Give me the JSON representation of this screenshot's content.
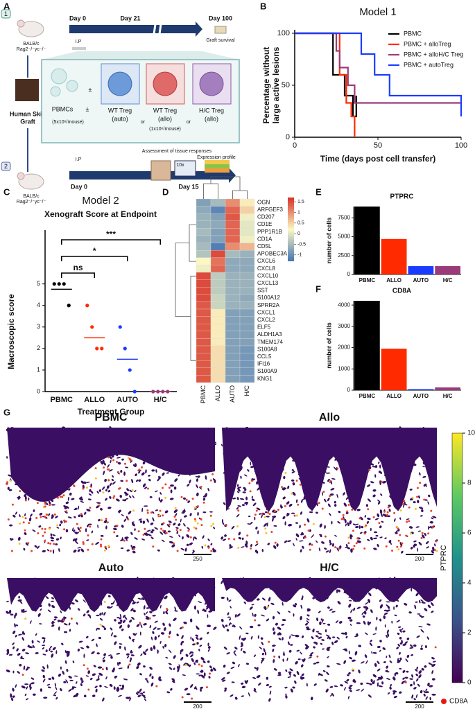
{
  "panel_labels": [
    "A",
    "B",
    "C",
    "D",
    "E",
    "F",
    "G"
  ],
  "schematic": {
    "route_numbers": [
      "1",
      "2"
    ],
    "mouse_label": [
      "BALB/c",
      "Rag2⁻/⁻γc⁻/⁻"
    ],
    "timeline1_days": [
      "Day 0",
      "Day 21",
      "Day 100"
    ],
    "ip": "I.P",
    "graft_survival": "Graft survival",
    "pbmcs": "PBMCs",
    "plus_minus": "±",
    "pbmc_dose": "(5x10⁶/mouse)",
    "tregs": [
      [
        "WT Treg",
        "(auto)"
      ],
      [
        "WT Treg",
        "(allo)"
      ],
      [
        "H/C Treg",
        "(allo)"
      ]
    ],
    "or": "or",
    "treg_dose": "(1x10⁶/mouse)",
    "graft": [
      "Human Skin",
      "Graft"
    ],
    "assessment": "Assessment of tissue responses",
    "timeline2_days": [
      "Day 0",
      "Day 15"
    ],
    "magnification": "10x",
    "expression_profile": "Expression profile"
  },
  "chart_data": [
    {
      "type": "step",
      "title": "Model 1",
      "x_label": "Time (days post cell transfer)",
      "y_label": [
        "Percentage without",
        "large active lesions"
      ],
      "xlim": [
        0,
        100
      ],
      "ylim": [
        0,
        100
      ],
      "xticks": [
        0,
        50,
        100
      ],
      "yticks": [
        0,
        50,
        100
      ],
      "legend": "top-right",
      "series": [
        {
          "name": "PBMC",
          "color": "#000000",
          "x": [
            0,
            23,
            30,
            35,
            37
          ],
          "values": [
            100,
            60,
            40,
            20,
            40
          ]
        },
        {
          "name": "PBMC + alloTreg",
          "color": "#ff2a00",
          "x": [
            0,
            27,
            31,
            34,
            36
          ],
          "values": [
            100,
            60,
            33,
            20,
            0
          ]
        },
        {
          "name": "PBMC + alloH/C Treg",
          "color": "#9b3a7a",
          "x": [
            0,
            25,
            27,
            32,
            36,
            100
          ],
          "values": [
            100,
            83,
            67,
            50,
            33,
            33
          ]
        },
        {
          "name": "PBMC + autoTreg",
          "color": "#1a3cff",
          "x": [
            0,
            40,
            48,
            57,
            100
          ],
          "values": [
            100,
            80,
            60,
            40,
            20
          ]
        }
      ]
    },
    {
      "type": "strip",
      "title": "Model 2",
      "subtitle": "Xenograft Score at Endpoint",
      "x_label": "Treatment Group",
      "y_label": "Macroscopic score",
      "categories": [
        "PBMC",
        "ALLO",
        "AUTO",
        "H/C"
      ],
      "colors": [
        "#000000",
        "#ff2a00",
        "#1a3cff",
        "#9b3a7a"
      ],
      "ylim": [
        0,
        7.5
      ],
      "yticks": [
        0,
        1,
        2,
        3,
        4,
        5
      ],
      "points": [
        [
          5,
          5,
          5,
          4
        ],
        [
          4,
          3,
          2,
          2
        ],
        [
          3,
          2,
          1,
          0
        ],
        [
          0,
          0,
          0,
          0
        ]
      ],
      "means": [
        4.75,
        2.5,
        1.5,
        0
      ],
      "annotations": [
        {
          "text": "ns",
          "from": 0,
          "to": 1
        },
        {
          "text": "*",
          "from": 0,
          "to": 2
        },
        {
          "text": "***",
          "from": 0,
          "to": 3
        }
      ]
    },
    {
      "type": "heatmap",
      "rows": [
        "OGN",
        "ARFGEF3",
        "CD207",
        "CD1E",
        "PPP1R1B",
        "CD1A",
        "CD5L",
        "APOBEC3A",
        "CXCL6",
        "CXCL8",
        "CXCL10",
        "CXCL13",
        "SST",
        "S100A12",
        "SPRR2A",
        "CXCL1",
        "CXCL2",
        "ELF5",
        "ALDH1A3",
        "TMEM174",
        "S100A8",
        "CCL5",
        "IFI16",
        "S100A9",
        "KNG1"
      ],
      "columns": [
        "PBMC",
        "ALLO",
        "AUTO",
        "H/C"
      ],
      "values": [
        [
          -0.8,
          -0.5,
          1.0,
          0.3
        ],
        [
          -0.7,
          -1.1,
          1.3,
          0.5
        ],
        [
          -0.6,
          -0.8,
          1.4,
          0.1
        ],
        [
          -0.6,
          -0.7,
          1.3,
          0.0
        ],
        [
          -0.5,
          -0.8,
          1.3,
          0.0
        ],
        [
          -0.6,
          -0.8,
          1.3,
          0.1
        ],
        [
          -0.5,
          -1.2,
          1.0,
          0.7
        ],
        [
          -0.4,
          1.5,
          -0.5,
          -0.6
        ],
        [
          0.2,
          1.2,
          -0.7,
          -0.7
        ],
        [
          0.1,
          1.3,
          -0.7,
          -0.7
        ],
        [
          1.5,
          -0.3,
          -0.6,
          -0.6
        ],
        [
          1.5,
          -0.3,
          -0.6,
          -0.6
        ],
        [
          1.5,
          -0.3,
          -0.6,
          -0.6
        ],
        [
          1.5,
          -0.2,
          -0.6,
          -0.7
        ],
        [
          1.4,
          -0.2,
          -0.6,
          -0.6
        ],
        [
          1.4,
          0.3,
          -0.8,
          -0.8
        ],
        [
          1.4,
          0.3,
          -0.8,
          -0.8
        ],
        [
          1.4,
          0.3,
          -0.8,
          -0.8
        ],
        [
          1.4,
          0.3,
          -0.8,
          -0.8
        ],
        [
          1.4,
          0.3,
          -0.8,
          -0.8
        ],
        [
          1.4,
          0.4,
          -0.8,
          -0.9
        ],
        [
          1.4,
          0.4,
          -0.8,
          -0.9
        ],
        [
          1.4,
          0.4,
          -0.8,
          -0.9
        ],
        [
          1.4,
          0.4,
          -0.8,
          -0.9
        ],
        [
          1.4,
          0.4,
          -0.8,
          -0.9
        ]
      ],
      "colors": [
        "#4575b4",
        "#fbf8c4",
        "#d73027"
      ],
      "clim": [
        -1.3,
        1.7
      ],
      "cticks": [
        -1,
        -0.5,
        0,
        0.5,
        1,
        1.5
      ]
    },
    {
      "type": "bar",
      "title": "PTPRC",
      "y_label": "number of cells",
      "categories": [
        "PBMC",
        "ALLO",
        "AUTO",
        "H/C"
      ],
      "values": [
        9000,
        4700,
        1100,
        1100
      ],
      "colors": [
        "#000000",
        "#ff2a00",
        "#1a3cff",
        "#9b3a7a"
      ],
      "ylim": [
        0,
        9000
      ],
      "yticks": [
        0,
        2500,
        5000,
        7500
      ]
    },
    {
      "type": "bar",
      "title": "CD8A",
      "y_label": "number of cells",
      "categories": [
        "PBMC",
        "ALLO",
        "AUTO",
        "H/C"
      ],
      "values": [
        4200,
        1950,
        50,
        130
      ],
      "colors": [
        "#000000",
        "#ff2a00",
        "#1a3cff",
        "#9b3a7a"
      ],
      "ylim": [
        0,
        4200
      ],
      "yticks": [
        0,
        1000,
        2000,
        3000,
        4000
      ]
    }
  ],
  "images": {
    "panels": [
      {
        "title": "PBMC",
        "scale_bar": "250"
      },
      {
        "title": "Allo",
        "scale_bar": "200"
      },
      {
        "title": "Auto",
        "scale_bar": "200"
      },
      {
        "title": "H/C",
        "scale_bar": "200"
      }
    ],
    "colorbar": {
      "label": "PTPRC",
      "lim": [
        0,
        10
      ],
      "ticks": [
        0,
        2,
        4,
        6,
        8,
        10
      ]
    },
    "legend": "CD8A"
  }
}
